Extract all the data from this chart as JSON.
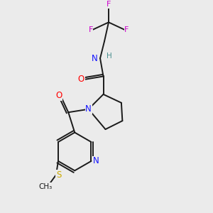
{
  "background_color": "#ebebeb",
  "bond_color": "#1a1a1a",
  "N_color": "#1414ff",
  "O_color": "#ff0000",
  "F_color": "#cc00cc",
  "S_color": "#ccaa00",
  "H_color": "#4a9090",
  "figsize": [
    3.0,
    3.0
  ],
  "dpi": 100,
  "xlim": [
    0,
    10
  ],
  "ylim": [
    0,
    10
  ]
}
